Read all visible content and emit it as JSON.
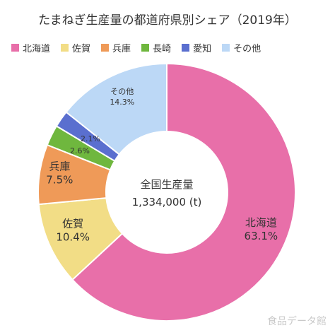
{
  "chart_data": {
    "type": "pie",
    "title": "たまねぎ生産量の都道府県別シェア（2019年）",
    "center_label": "全国生産量",
    "center_value": "1,334,000 (t)",
    "categories": [
      "北海道",
      "佐賀",
      "兵庫",
      "長崎",
      "愛知",
      "その他"
    ],
    "values": [
      63.1,
      10.4,
      7.5,
      2.6,
      2.1,
      14.3
    ],
    "value_labels": [
      "63.1%",
      "10.4%",
      "7.5%",
      "2.6%",
      "2.1%",
      "14.3%"
    ],
    "colors": [
      "#e86fa9",
      "#f2dd86",
      "#ef9a58",
      "#6fb73e",
      "#5a6fcf",
      "#bcd8f6"
    ],
    "legend_position": "top",
    "start_angle": 0,
    "direction": "clockwise"
  },
  "watermark": "食品データ館"
}
